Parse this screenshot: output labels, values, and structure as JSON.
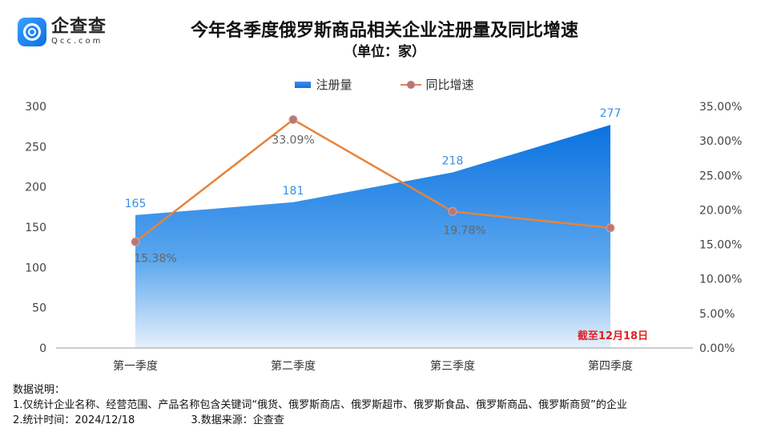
{
  "logo": {
    "cn": "企查查",
    "en": "Qcc.com"
  },
  "title": "今年各季度俄罗斯商品相关企业注册量及同比增速",
  "subtitle": "（单位：家）",
  "chart_data": {
    "type": "area+line",
    "title": "今年各季度俄罗斯商品相关企业注册量及同比增速",
    "subtitle": "（单位：家）",
    "categories": [
      "第一季度",
      "第二季度",
      "第三季度",
      "第四季度"
    ],
    "series": [
      {
        "name": "注册量",
        "type": "area",
        "axis": "left",
        "values": [
          165,
          181,
          218,
          277
        ],
        "labels": [
          "165",
          "181",
          "218",
          "277"
        ],
        "color": "#1a7be0"
      },
      {
        "name": "同比增速",
        "type": "line",
        "axis": "right",
        "values": [
          15.38,
          33.09,
          19.78,
          17.4
        ],
        "labels": [
          "15.38%",
          "33.09%",
          "19.78%",
          ""
        ],
        "color": "#e8833a",
        "marker_color": "#b87878"
      }
    ],
    "y_left": {
      "range": [
        0,
        300
      ],
      "ticks": [
        "0",
        "50",
        "100",
        "150",
        "200",
        "250",
        "300"
      ]
    },
    "y_right": {
      "range": [
        0,
        35
      ],
      "ticks": [
        "0.00%",
        "5.00%",
        "10.00%",
        "15.00%",
        "20.00%",
        "25.00%",
        "30.00%",
        "35.00%"
      ]
    },
    "annotation": {
      "text": "截至12月18日",
      "color": "#e02020"
    },
    "legend": "top",
    "grid": false,
    "label_color": "#3a8ee6"
  },
  "notes": {
    "heading": "数据说明：",
    "line1": "1.仅统计企业名称、经营范围、产品名称包含关键词“俄货、俄罗斯商店、俄罗斯超市、俄罗斯食品、俄罗斯商品、俄罗斯商贸”的企业",
    "line2a": "2.统计时间：2024/12/18",
    "line2b": "3.数据来源：企查查"
  }
}
